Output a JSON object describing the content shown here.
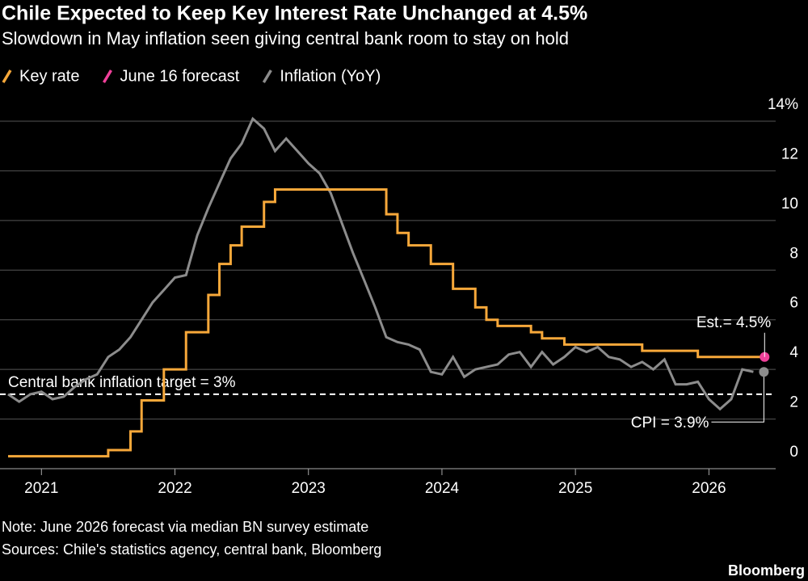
{
  "chart_data": {
    "type": "line",
    "title": "Chile Expected to Keep Key Interest Rate Unchanged at 4.5%",
    "subtitle": "Slowdown in May inflation seen giving central bank room to stay on hold",
    "note": "Note: June 2026 forecast via median BN survey estimate",
    "source": "Sources: Chile's statistics agency, central bank, Bloomberg",
    "brand": "Bloomberg",
    "x": [
      2020.75,
      2020.833,
      2020.917,
      2021,
      2021.083,
      2021.167,
      2021.25,
      2021.333,
      2021.417,
      2021.5,
      2021.583,
      2021.667,
      2021.75,
      2021.833,
      2021.917,
      2022,
      2022.083,
      2022.167,
      2022.25,
      2022.333,
      2022.417,
      2022.5,
      2022.583,
      2022.667,
      2022.75,
      2022.833,
      2022.917,
      2023,
      2023.083,
      2023.167,
      2023.25,
      2023.333,
      2023.417,
      2023.5,
      2023.583,
      2023.667,
      2023.75,
      2023.833,
      2023.917,
      2024,
      2024.083,
      2024.167,
      2024.25,
      2024.333,
      2024.417,
      2024.5,
      2024.583,
      2024.667,
      2024.75,
      2024.833,
      2024.917,
      2025,
      2025.083,
      2025.167,
      2025.25,
      2025.333,
      2025.417,
      2025.5,
      2025.583,
      2025.667,
      2025.75,
      2025.833,
      2025.917,
      2026,
      2026.083,
      2026.167,
      2026.25,
      2026.333,
      2026.417
    ],
    "series": [
      {
        "name": "Key rate",
        "color": "#f7a83a",
        "step": true,
        "values": [
          0.5,
          0.5,
          0.5,
          0.5,
          0.5,
          0.5,
          0.5,
          0.5,
          0.5,
          0.75,
          0.75,
          1.5,
          2.75,
          2.75,
          4.0,
          4.0,
          5.5,
          5.5,
          7.0,
          8.25,
          9.0,
          9.75,
          9.75,
          10.75,
          11.25,
          11.25,
          11.25,
          11.25,
          11.25,
          11.25,
          11.25,
          11.25,
          11.25,
          11.25,
          10.25,
          9.5,
          9.0,
          9.0,
          8.25,
          8.25,
          7.25,
          7.25,
          6.5,
          6.0,
          5.75,
          5.75,
          5.75,
          5.5,
          5.25,
          5.25,
          5.0,
          5.0,
          5.0,
          5.0,
          5.0,
          5.0,
          5.0,
          4.75,
          4.75,
          4.75,
          4.75,
          4.75,
          4.5,
          4.5,
          4.5,
          4.5,
          4.5,
          4.5,
          null
        ]
      },
      {
        "name": "June 16 forecast",
        "color": "#f0409a",
        "x": [
          2026.417
        ],
        "values": [
          4.5
        ]
      },
      {
        "name": "Inflation (YoY)",
        "color": "#8c8c8c",
        "values": [
          3.0,
          2.7,
          3.0,
          3.1,
          2.8,
          2.9,
          3.3,
          3.6,
          3.8,
          4.5,
          4.8,
          5.3,
          6.0,
          6.7,
          7.2,
          7.7,
          7.8,
          9.4,
          10.5,
          11.5,
          12.5,
          13.1,
          14.1,
          13.7,
          12.8,
          13.3,
          12.8,
          12.3,
          11.9,
          11.1,
          9.9,
          8.7,
          7.6,
          6.5,
          5.3,
          5.1,
          5.0,
          4.8,
          3.9,
          3.8,
          4.5,
          3.7,
          4.0,
          4.1,
          4.2,
          4.6,
          4.7,
          4.1,
          4.7,
          4.2,
          4.5,
          4.9,
          4.7,
          4.9,
          4.5,
          4.4,
          4.1,
          4.3,
          4.0,
          4.4,
          3.4,
          3.4,
          3.5,
          2.8,
          2.4,
          2.8,
          4.0,
          3.9,
          null
        ]
      }
    ],
    "xlim": [
      2020.75,
      2026.5
    ],
    "xticks": [
      2021,
      2022,
      2023,
      2024,
      2025,
      2026
    ],
    "ylim": [
      0,
      14
    ],
    "yticks": [
      0,
      2,
      4,
      6,
      8,
      10,
      12,
      {
        "value": 14,
        "label": "14%"
      }
    ],
    "grid": true,
    "target": {
      "value": 3,
      "label": "Central bank inflation target = 3%"
    },
    "annotations": [
      {
        "text": "Est.= 4.5%",
        "series": 1,
        "index": 0
      },
      {
        "text": "CPI = 3.9%",
        "series": 2,
        "index": 67
      }
    ]
  }
}
